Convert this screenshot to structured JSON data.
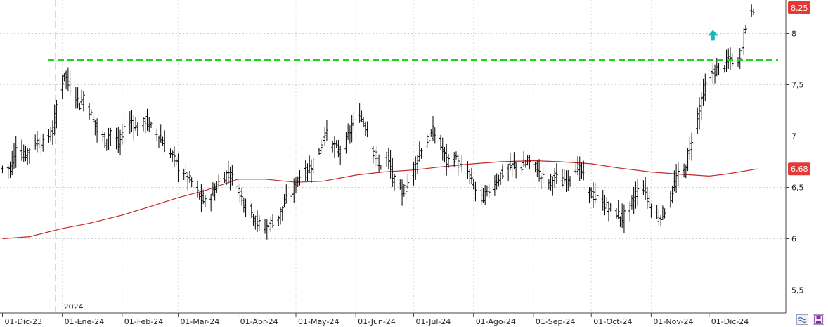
{
  "chart_data": {
    "type": "ohlc-bar",
    "y_ticks": [
      "5,5",
      "6",
      "6,5",
      "7",
      "7,5",
      "8"
    ],
    "y_tick_values": [
      5.5,
      6,
      6.5,
      7,
      7.5,
      8
    ],
    "ylim": [
      5.1,
      8.3
    ],
    "x_ticks": [
      "01-Dic-23",
      "01-Ene-24",
      "01-Feb-24",
      "01-Mar-24",
      "01-Abr-24",
      "01-May-24",
      "01-Jun-24",
      "01-Jul-24",
      "01-Ago-24",
      "01-Sep-24",
      "01-Oct-24",
      "01-Nov-24",
      "01-Dic-24"
    ],
    "x_tick_dates": [
      "2023-12-01",
      "2024-01-01",
      "2024-02-01",
      "2024-03-01",
      "2024-04-01",
      "2024-05-01",
      "2024-06-01",
      "2024-07-01",
      "2024-08-01",
      "2024-09-01",
      "2024-10-01",
      "2024-11-01",
      "2024-12-01"
    ],
    "year_marker": {
      "label": "2024",
      "date": "2024-01-01"
    },
    "last_price": {
      "label": "8,25",
      "value": 8.25,
      "color": "#e53935"
    },
    "moving_average_last": {
      "label": "6,68",
      "value": 6.68,
      "color": "#e53935"
    },
    "resistance_level": {
      "value": 7.74,
      "color": "#19d819",
      "style": "dashed"
    },
    "signal_marker": {
      "type": "up-arrow",
      "date": "2024-12-03",
      "value": 7.98,
      "color": "#19b8b8"
    },
    "price_series": {
      "name": "",
      "color": "#000000",
      "points": [
        [
          "2023-12-01",
          6.68
        ],
        [
          "2023-12-05",
          6.7
        ],
        [
          "2023-12-08",
          6.92
        ],
        [
          "2023-12-12",
          6.8
        ],
        [
          "2023-12-15",
          6.88
        ],
        [
          "2023-12-19",
          6.95
        ],
        [
          "2023-12-22",
          6.92
        ],
        [
          "2023-12-27",
          7.05
        ],
        [
          "2023-12-29",
          7.3
        ],
        [
          "2024-01-02",
          7.62
        ],
        [
          "2024-01-04",
          7.5
        ],
        [
          "2024-01-08",
          7.4
        ],
        [
          "2024-01-10",
          7.3
        ],
        [
          "2024-01-12",
          7.4
        ],
        [
          "2024-01-16",
          7.2
        ],
        [
          "2024-01-19",
          7.05
        ],
        [
          "2024-01-23",
          6.95
        ],
        [
          "2024-01-26",
          7.05
        ],
        [
          "2024-01-30",
          6.9
        ],
        [
          "2024-02-02",
          7.1
        ],
        [
          "2024-02-06",
          7.15
        ],
        [
          "2024-02-09",
          7.05
        ],
        [
          "2024-02-13",
          7.15
        ],
        [
          "2024-02-16",
          7.08
        ],
        [
          "2024-02-20",
          7.0
        ],
        [
          "2024-02-23",
          6.9
        ],
        [
          "2024-02-27",
          6.8
        ],
        [
          "2024-03-01",
          6.7
        ],
        [
          "2024-03-05",
          6.6
        ],
        [
          "2024-03-08",
          6.55
        ],
        [
          "2024-03-12",
          6.4
        ],
        [
          "2024-03-15",
          6.35
        ],
        [
          "2024-03-19",
          6.45
        ],
        [
          "2024-03-22",
          6.55
        ],
        [
          "2024-03-27",
          6.65
        ],
        [
          "2024-04-01",
          6.5
        ],
        [
          "2024-04-04",
          6.35
        ],
        [
          "2024-04-08",
          6.25
        ],
        [
          "2024-04-11",
          6.15
        ],
        [
          "2024-04-15",
          6.1
        ],
        [
          "2024-04-18",
          6.15
        ],
        [
          "2024-04-22",
          6.22
        ],
        [
          "2024-04-25",
          6.35
        ],
        [
          "2024-04-29",
          6.45
        ],
        [
          "2024-05-02",
          6.6
        ],
        [
          "2024-05-06",
          6.65
        ],
        [
          "2024-05-09",
          6.72
        ],
        [
          "2024-05-13",
          6.85
        ],
        [
          "2024-05-16",
          7.05
        ],
        [
          "2024-05-20",
          6.9
        ],
        [
          "2024-05-23",
          6.85
        ],
        [
          "2024-05-27",
          6.95
        ],
        [
          "2024-05-30",
          7.1
        ],
        [
          "2024-06-03",
          7.2
        ],
        [
          "2024-06-06",
          7.1
        ],
        [
          "2024-06-10",
          6.85
        ],
        [
          "2024-06-13",
          6.7
        ],
        [
          "2024-06-17",
          6.8
        ],
        [
          "2024-06-20",
          6.6
        ],
        [
          "2024-06-24",
          6.45
        ],
        [
          "2024-06-27",
          6.5
        ],
        [
          "2024-07-01",
          6.7
        ],
        [
          "2024-07-04",
          6.85
        ],
        [
          "2024-07-08",
          6.95
        ],
        [
          "2024-07-11",
          7.05
        ],
        [
          "2024-07-15",
          6.9
        ],
        [
          "2024-07-18",
          6.75
        ],
        [
          "2024-07-22",
          6.8
        ],
        [
          "2024-07-25",
          6.7
        ],
        [
          "2024-07-29",
          6.65
        ],
        [
          "2024-08-01",
          6.5
        ],
        [
          "2024-08-05",
          6.4
        ],
        [
          "2024-08-08",
          6.45
        ],
        [
          "2024-08-12",
          6.55
        ],
        [
          "2024-08-15",
          6.62
        ],
        [
          "2024-08-19",
          6.68
        ],
        [
          "2024-08-22",
          6.72
        ],
        [
          "2024-08-26",
          6.7
        ],
        [
          "2024-08-29",
          6.75
        ],
        [
          "2024-09-02",
          6.7
        ],
        [
          "2024-09-05",
          6.6
        ],
        [
          "2024-09-09",
          6.55
        ],
        [
          "2024-09-12",
          6.6
        ],
        [
          "2024-09-16",
          6.55
        ],
        [
          "2024-09-19",
          6.6
        ],
        [
          "2024-09-23",
          6.7
        ],
        [
          "2024-09-26",
          6.65
        ],
        [
          "2024-09-30",
          6.45
        ],
        [
          "2024-10-03",
          6.4
        ],
        [
          "2024-10-07",
          6.35
        ],
        [
          "2024-10-10",
          6.3
        ],
        [
          "2024-10-14",
          6.25
        ],
        [
          "2024-10-17",
          6.2
        ],
        [
          "2024-10-21",
          6.3
        ],
        [
          "2024-10-24",
          6.45
        ],
        [
          "2024-10-28",
          6.5
        ],
        [
          "2024-10-31",
          6.35
        ],
        [
          "2024-11-04",
          6.2
        ],
        [
          "2024-11-07",
          6.25
        ],
        [
          "2024-11-11",
          6.4
        ],
        [
          "2024-11-14",
          6.6
        ],
        [
          "2024-11-18",
          6.65
        ],
        [
          "2024-11-21",
          6.9
        ],
        [
          "2024-11-25",
          7.2
        ],
        [
          "2024-11-28",
          7.45
        ],
        [
          "2024-12-02",
          7.6
        ],
        [
          "2024-12-05",
          7.65
        ],
        [
          "2024-12-09",
          7.7
        ],
        [
          "2024-12-12",
          7.75
        ],
        [
          "2024-12-16",
          7.7
        ],
        [
          "2024-12-19",
          8.0
        ],
        [
          "2024-12-23",
          8.25
        ]
      ]
    },
    "moving_average": {
      "name": "",
      "color": "#c62828",
      "points": [
        [
          "2023-12-01",
          6.0
        ],
        [
          "2023-12-15",
          6.02
        ],
        [
          "2024-01-01",
          6.1
        ],
        [
          "2024-01-15",
          6.15
        ],
        [
          "2024-02-01",
          6.23
        ],
        [
          "2024-02-15",
          6.31
        ],
        [
          "2024-03-01",
          6.4
        ],
        [
          "2024-03-15",
          6.47
        ],
        [
          "2024-04-01",
          6.58
        ],
        [
          "2024-04-15",
          6.58
        ],
        [
          "2024-05-01",
          6.55
        ],
        [
          "2024-05-15",
          6.56
        ],
        [
          "2024-06-01",
          6.62
        ],
        [
          "2024-06-15",
          6.65
        ],
        [
          "2024-07-01",
          6.67
        ],
        [
          "2024-07-15",
          6.7
        ],
        [
          "2024-08-01",
          6.73
        ],
        [
          "2024-08-15",
          6.75
        ],
        [
          "2024-09-01",
          6.76
        ],
        [
          "2024-09-15",
          6.75
        ],
        [
          "2024-10-01",
          6.73
        ],
        [
          "2024-10-15",
          6.69
        ],
        [
          "2024-11-01",
          6.65
        ],
        [
          "2024-11-15",
          6.63
        ],
        [
          "2024-12-01",
          6.61
        ],
        [
          "2024-12-10",
          6.63
        ],
        [
          "2024-12-26",
          6.68
        ]
      ]
    }
  }
}
